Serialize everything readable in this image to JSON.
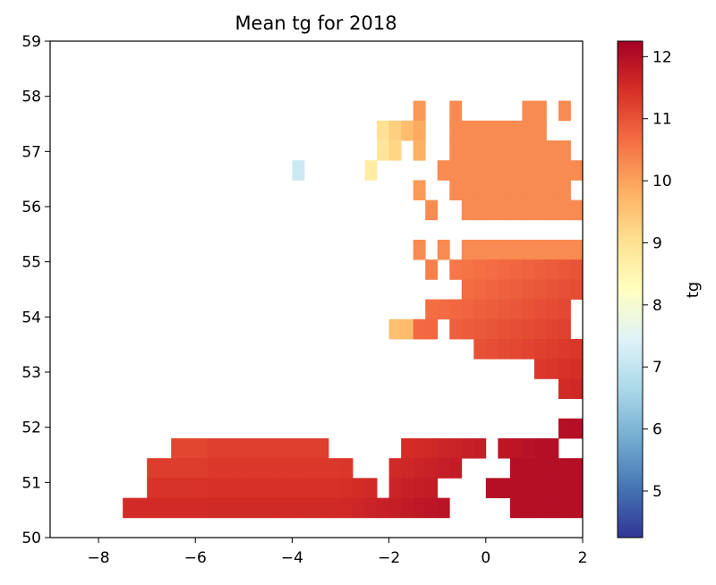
{
  "chart_data": {
    "type": "heatmap",
    "title": "Mean tg for 2018",
    "xlabel": "",
    "ylabel": "",
    "xlim": [
      -9,
      2
    ],
    "ylim": [
      50,
      59
    ],
    "x_ticks": [
      -8,
      -6,
      -4,
      -2,
      0,
      2
    ],
    "x_tick_labels": [
      "−8",
      "−6",
      "−4",
      "−2",
      "0",
      "2"
    ],
    "y_ticks": [
      50,
      51,
      52,
      53,
      54,
      55,
      56,
      57,
      58,
      59
    ],
    "y_tick_labels": [
      "50",
      "51",
      "52",
      "53",
      "54",
      "55",
      "56",
      "57",
      "58",
      "59"
    ],
    "grid": false,
    "colormap": "RdYlBu_r",
    "colorbar": {
      "label": "tg",
      "range": [
        4.25,
        12.25
      ],
      "ticks": [
        5,
        6,
        7,
        8,
        9,
        10,
        11,
        12
      ],
      "tick_labels": [
        "5",
        "6",
        "7",
        "8",
        "9",
        "10",
        "11",
        "12"
      ]
    },
    "cell_size_deg": 0.25,
    "grid_origin": {
      "lon": -9,
      "lat_top": 59
    },
    "rows": [
      ".....................................................................",
      ".....................................................................",
      "...........................................................",
      "..............................8..6.....77.7.9...............",
      "...........................9998..77677778...................",
      "...........................99.9..7766777799.................",
      "....................9.....9.....7766778888888999............",
      "..............................8..6677777788.8788888.........",
      "...............................9..8777776777888988..........",
      ".......................................................",
      "..............................8.8.8777665556665888..........",
      "...............................9.7765665555588.9............",
      "..................................8787766567888.9............",
      "...............................998988888999.989.............",
      "............................9999.8777788878.999.............",
      "...................................9898899988888...........",
      "........................................99998888888..........",
      "..........................................99.8877778888.9....",
      ".............................................9...888888.9....",
      "..........................................99999997787888.9....",
      "..........9999999999999......9999999.99999...8878.9.........",
      "........99999999999999999...999999....99988888.9.............",
      "........9999998899999999999.9999....99988999..999.99........",
      "......999999998899999999999999999.....999888888899.....9...",
      "..........................................................."
    ]
  }
}
